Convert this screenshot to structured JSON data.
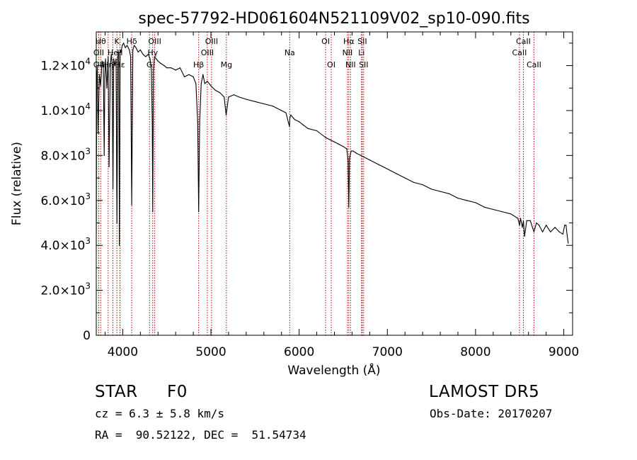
{
  "chart_data": {
    "type": "line",
    "title": "spec-57792-HD061604N521109V02_sp10-090.fits",
    "xlabel": "Wavelength (Å)",
    "ylabel": "Flux (relative)",
    "xlim": [
      3700,
      9100
    ],
    "ylim": [
      0,
      13500
    ],
    "grid": false,
    "x_ticks": [
      4000,
      5000,
      6000,
      7000,
      8000,
      9000
    ],
    "x_tick_labels": [
      "4000",
      "5000",
      "6000",
      "7000",
      "8000",
      "9000"
    ],
    "y_ticks": [
      0,
      2000,
      4000,
      6000,
      8000,
      10000,
      12000
    ],
    "y_tick_labels": [
      {
        "mant": "0",
        "exp": ""
      },
      {
        "mant": "2.0×10",
        "exp": "3"
      },
      {
        "mant": "4.0×10",
        "exp": "3"
      },
      {
        "mant": "6.0×10",
        "exp": "3"
      },
      {
        "mant": "8.0×10",
        "exp": "3"
      },
      {
        "mant": "1.0×10",
        "exp": "4"
      },
      {
        "mant": "1.2×10",
        "exp": "4"
      }
    ],
    "series": [
      {
        "x": [
          3700,
          3705,
          3712,
          3720,
          3735,
          3750,
          3765,
          3780,
          3790,
          3797,
          3805,
          3820,
          3835,
          3845,
          3860,
          3870,
          3880,
          3889,
          3898,
          3910,
          3925,
          3934,
          3945,
          3955,
          3962,
          3970,
          3980,
          3995,
          4010,
          4030,
          4050,
          4075,
          4090,
          4102,
          4115,
          4130,
          4150,
          4175,
          4200,
          4230,
          4260,
          4290,
          4310,
          4325,
          4335,
          4340,
          4348,
          4360,
          4380,
          4400,
          4430,
          4470,
          4500,
          4550,
          4600,
          4650,
          4700,
          4750,
          4800,
          4830,
          4850,
          4861,
          4872,
          4890,
          4910,
          4930,
          4960,
          5000,
          5050,
          5100,
          5150,
          5172,
          5200,
          5260,
          5320,
          5400,
          5500,
          5600,
          5700,
          5800,
          5850,
          5890,
          5896,
          5905,
          5950,
          6000,
          6100,
          6200,
          6300,
          6350,
          6400,
          6450,
          6500,
          6540,
          6555,
          6563,
          6572,
          6590,
          6610,
          6650,
          6700,
          6800,
          6900,
          7000,
          7100,
          7200,
          7300,
          7400,
          7500,
          7600,
          7700,
          7800,
          7900,
          8000,
          8100,
          8200,
          8300,
          8400,
          8480,
          8498,
          8510,
          8530,
          8542,
          8555,
          8580,
          8620,
          8662,
          8690,
          8720,
          8760,
          8800,
          8850,
          8900,
          8950,
          8990,
          9010,
          9025,
          9040,
          9050
        ],
        "y": [
          4000,
          11500,
          11900,
          9000,
          11600,
          11100,
          12200,
          12000,
          8000,
          11500,
          12300,
          11000,
          12400,
          7500,
          12000,
          12500,
          12100,
          6500,
          12300,
          12000,
          12300,
          5000,
          12400,
          12600,
          4000,
          12700,
          12600,
          12900,
          13000,
          12800,
          12900,
          12700,
          12400,
          5800,
          12700,
          12900,
          12800,
          12600,
          12700,
          12500,
          12400,
          12500,
          12300,
          11800,
          9500,
          5500,
          11800,
          12400,
          12300,
          12200,
          12100,
          12000,
          11900,
          11900,
          11800,
          11900,
          11500,
          11600,
          11500,
          11200,
          9500,
          5500,
          9500,
          11200,
          11600,
          11200,
          11300,
          11100,
          10900,
          10800,
          10600,
          9800,
          10600,
          10700,
          10600,
          10500,
          10400,
          10300,
          10200,
          10000,
          9900,
          9300,
          9700,
          9800,
          9600,
          9500,
          9200,
          9100,
          8800,
          8700,
          8600,
          8500,
          8400,
          8300,
          7800,
          5700,
          7900,
          8200,
          8200,
          8100,
          8000,
          7800,
          7600,
          7400,
          7200,
          7000,
          6800,
          6700,
          6500,
          6400,
          6300,
          6100,
          6000,
          5900,
          5700,
          5600,
          5500,
          5400,
          5200,
          4900,
          5200,
          4800,
          5100,
          4400,
          5100,
          5100,
          4600,
          5000,
          4900,
          4600,
          4900,
          4600,
          4800,
          4600,
          4500,
          4900,
          4900,
          4400,
          4100
        ]
      }
    ],
    "line_color": "#000000",
    "marker_color": "#c00000",
    "line_markers": [
      {
        "x": 3750,
        "row": 1,
        "label": "Hθ"
      },
      {
        "x": 3728,
        "row": 2,
        "label": "OII"
      },
      {
        "x": 3727,
        "row": 3,
        "label": "OII"
      },
      {
        "x": 3835,
        "row": 3,
        "label": "Hη"
      },
      {
        "x": 3889,
        "row": 2,
        "label": "He"
      },
      {
        "x": 3934,
        "row": 1,
        "label": "K"
      },
      {
        "x": 3968,
        "row": 2,
        "label": "H"
      },
      {
        "x": 3970,
        "row": 3,
        "label": "Hε"
      },
      {
        "x": 4102,
        "row": 1,
        "label": "Hδ"
      },
      {
        "x": 4304,
        "row": 3,
        "label": "G"
      },
      {
        "x": 4340,
        "row": 2,
        "label": "Hγ"
      },
      {
        "x": 4363,
        "row": 1,
        "label": "OIII"
      },
      {
        "x": 4861,
        "row": 3,
        "label": "Hβ"
      },
      {
        "x": 4959,
        "row": 2,
        "label": "OIII"
      },
      {
        "x": 5007,
        "row": 1,
        "label": "OIII"
      },
      {
        "x": 5175,
        "row": 3,
        "label": "Mg"
      },
      {
        "x": 5893,
        "row": 2,
        "label": "Na"
      },
      {
        "x": 6300,
        "row": 1,
        "label": "OI"
      },
      {
        "x": 6364,
        "row": 3,
        "label": "OI"
      },
      {
        "x": 6548,
        "row": 2,
        "label": "NII"
      },
      {
        "x": 6563,
        "row": 1,
        "label": "Hα"
      },
      {
        "x": 6583,
        "row": 3,
        "label": "NII"
      },
      {
        "x": 6707,
        "row": 2,
        "label": "Li"
      },
      {
        "x": 6716,
        "row": 1,
        "label": "SII"
      },
      {
        "x": 6731,
        "row": 3,
        "label": "SII"
      },
      {
        "x": 8498,
        "row": 2,
        "label": "CaII"
      },
      {
        "x": 8542,
        "row": 1,
        "label": "CaII"
      },
      {
        "x": 8662,
        "row": 3,
        "label": "CaII"
      }
    ]
  },
  "footer": {
    "object_class": "STAR",
    "subclass": "F0",
    "survey": "LAMOST DR5",
    "redshift": "cz = 6.3 ± 5.8 km/s",
    "obs_date": "Obs-Date: 20170207",
    "coords": "RA =  90.52122, DEC =  51.54734"
  }
}
